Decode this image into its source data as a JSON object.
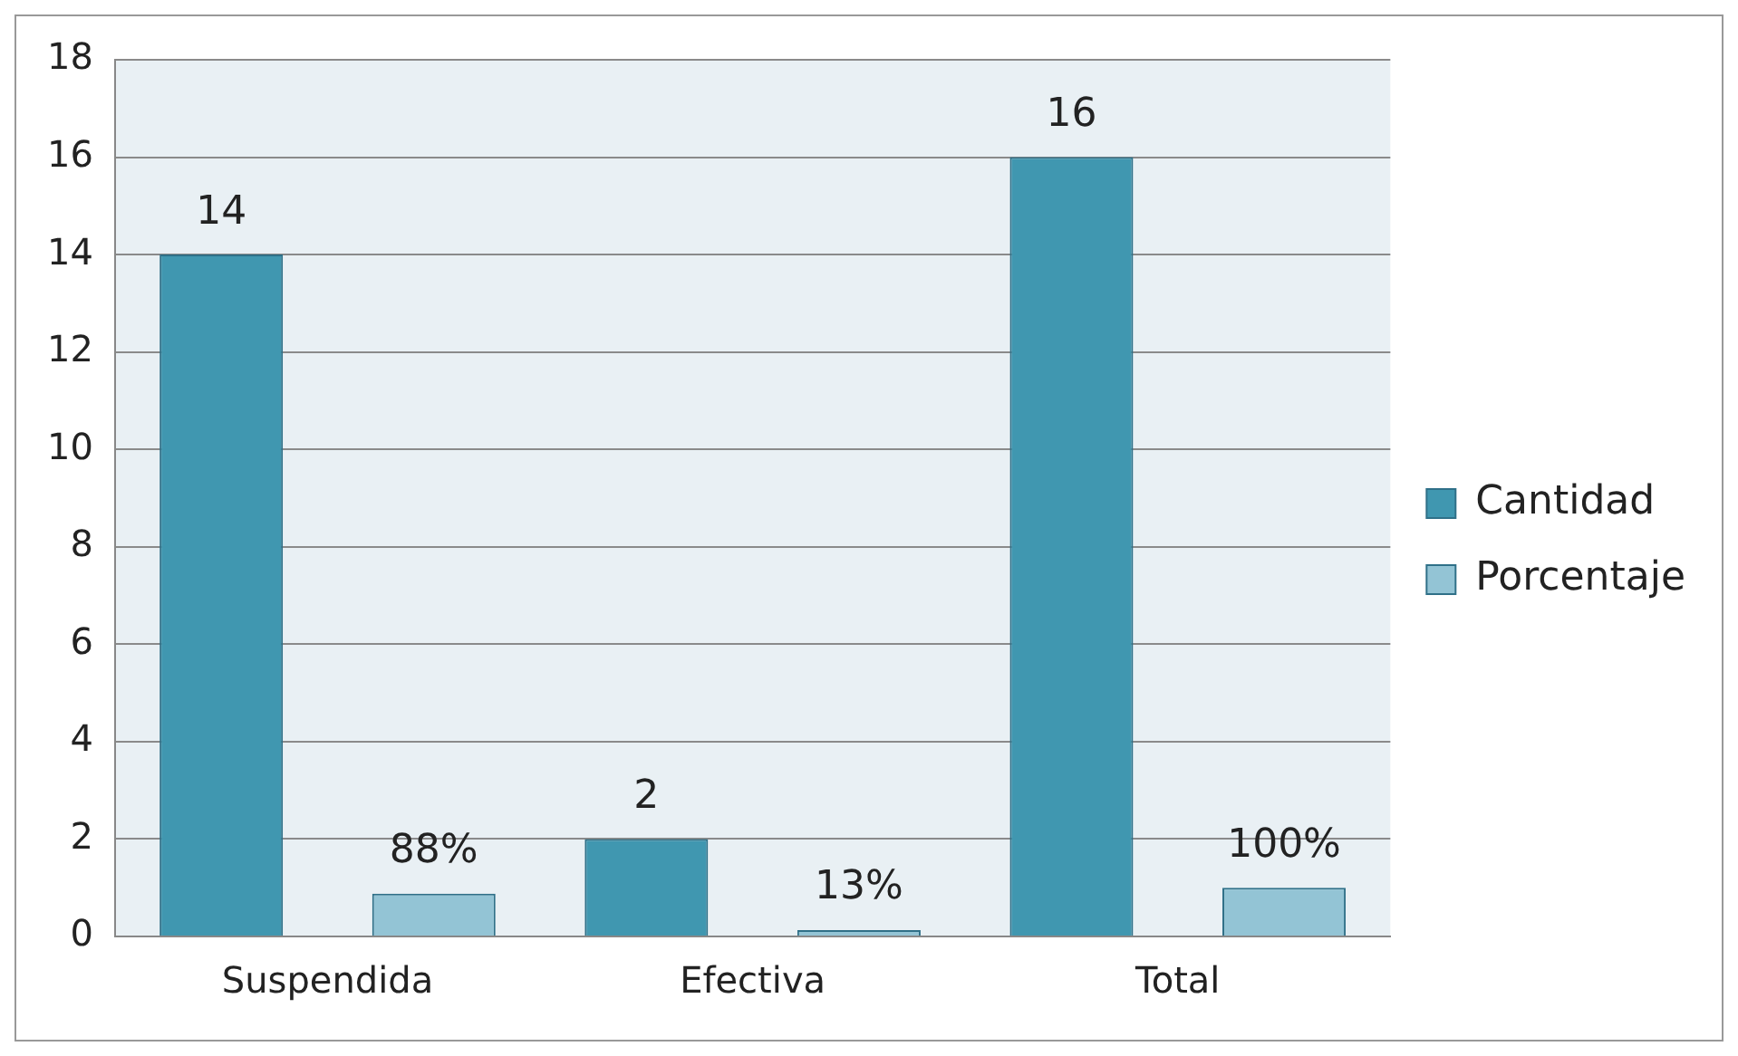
{
  "chart_data": {
    "type": "bar",
    "categories": [
      "Suspendida",
      "Efectiva",
      "Total"
    ],
    "series": [
      {
        "name": "Cantidad",
        "color": "#4097b0",
        "values": [
          14,
          2,
          16
        ],
        "value_labels": [
          "14",
          "2",
          "16"
        ]
      },
      {
        "name": "Porcentaje",
        "color": "#93c4d5",
        "values": [
          0.88,
          0.13,
          1
        ],
        "value_labels": [
          "88%",
          "13%",
          "100%"
        ]
      }
    ],
    "ylim": [
      0,
      18
    ],
    "yticks": [
      0,
      2,
      4,
      6,
      8,
      10,
      12,
      14,
      16,
      18
    ],
    "grid": "y",
    "legend": "right"
  }
}
